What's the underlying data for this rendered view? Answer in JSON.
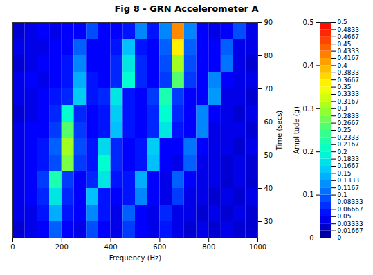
{
  "chart_data": {
    "type": "heatmap",
    "title": "Fig 8 - GRN Accelerometer A",
    "xlabel": "Frequency (Hz)",
    "ylabel": "Time (secs)",
    "zlabel": "Amplitude (g)",
    "xlim": [
      0,
      1000
    ],
    "xticks": [
      0,
      200,
      400,
      600,
      800,
      1000
    ],
    "ylim": [
      25,
      90
    ],
    "yticks": [
      30,
      40,
      50,
      60,
      70,
      80,
      90
    ],
    "zlim": [
      0,
      0.5
    ],
    "zticks": [
      0,
      0.1,
      0.2,
      0.3,
      0.4,
      0.5
    ],
    "x_bins": [
      0,
      50,
      100,
      150,
      200,
      250,
      300,
      350,
      400,
      450,
      500,
      550,
      600,
      650,
      700,
      750,
      800,
      850,
      900,
      950,
      1000
    ],
    "y_bins": [
      25,
      30,
      35,
      40,
      45,
      50,
      55,
      60,
      65,
      70,
      75,
      80,
      85,
      90
    ],
    "cells": [
      [
        0.03,
        0.04,
        0.05,
        0.1,
        0.05,
        0.04,
        0.09,
        0.05,
        0.04,
        0.08,
        0.05,
        0.04,
        0.06,
        0.04,
        0.03,
        0.04,
        0.03,
        0.04,
        0.03,
        0.03
      ],
      [
        0.04,
        0.04,
        0.06,
        0.14,
        0.06,
        0.05,
        0.12,
        0.06,
        0.04,
        0.1,
        0.05,
        0.04,
        0.07,
        0.04,
        0.04,
        0.03,
        0.04,
        0.03,
        0.04,
        0.03
      ],
      [
        0.04,
        0.05,
        0.07,
        0.18,
        0.07,
        0.05,
        0.15,
        0.06,
        0.05,
        0.06,
        0.12,
        0.05,
        0.04,
        0.08,
        0.04,
        0.04,
        0.03,
        0.04,
        0.03,
        0.04
      ],
      [
        0.04,
        0.05,
        0.08,
        0.22,
        0.08,
        0.05,
        0.07,
        0.18,
        0.06,
        0.06,
        0.14,
        0.05,
        0.04,
        0.1,
        0.05,
        0.04,
        0.04,
        0.03,
        0.04,
        0.03
      ],
      [
        0.04,
        0.05,
        0.06,
        0.09,
        0.28,
        0.08,
        0.06,
        0.2,
        0.07,
        0.05,
        0.06,
        0.15,
        0.05,
        0.04,
        0.1,
        0.04,
        0.04,
        0.03,
        0.04,
        0.03
      ],
      [
        0.04,
        0.05,
        0.06,
        0.1,
        0.3,
        0.09,
        0.06,
        0.17,
        0.07,
        0.05,
        0.06,
        0.16,
        0.05,
        0.05,
        0.11,
        0.05,
        0.04,
        0.04,
        0.03,
        0.04
      ],
      [
        0.04,
        0.05,
        0.05,
        0.08,
        0.26,
        0.08,
        0.05,
        0.06,
        0.15,
        0.06,
        0.05,
        0.07,
        0.18,
        0.06,
        0.05,
        0.12,
        0.04,
        0.04,
        0.04,
        0.03
      ],
      [
        0.03,
        0.04,
        0.05,
        0.07,
        0.2,
        0.07,
        0.05,
        0.06,
        0.16,
        0.06,
        0.05,
        0.07,
        0.2,
        0.07,
        0.05,
        0.12,
        0.05,
        0.04,
        0.03,
        0.04
      ],
      [
        0.04,
        0.04,
        0.05,
        0.06,
        0.07,
        0.16,
        0.06,
        0.07,
        0.18,
        0.06,
        0.05,
        0.08,
        0.22,
        0.08,
        0.05,
        0.05,
        0.13,
        0.04,
        0.04,
        0.03
      ],
      [
        0.04,
        0.05,
        0.04,
        0.05,
        0.06,
        0.14,
        0.06,
        0.05,
        0.07,
        0.2,
        0.07,
        0.05,
        0.08,
        0.26,
        0.08,
        0.05,
        0.12,
        0.05,
        0.04,
        0.04
      ],
      [
        0.03,
        0.04,
        0.05,
        0.05,
        0.06,
        0.12,
        0.05,
        0.05,
        0.07,
        0.18,
        0.07,
        0.05,
        0.09,
        0.3,
        0.09,
        0.05,
        0.05,
        0.11,
        0.04,
        0.03
      ],
      [
        0.04,
        0.04,
        0.04,
        0.05,
        0.05,
        0.1,
        0.05,
        0.05,
        0.06,
        0.15,
        0.06,
        0.05,
        0.1,
        0.36,
        0.1,
        0.05,
        0.05,
        0.1,
        0.04,
        0.04
      ],
      [
        0.03,
        0.04,
        0.05,
        0.04,
        0.05,
        0.05,
        0.09,
        0.05,
        0.05,
        0.06,
        0.12,
        0.06,
        0.12,
        0.42,
        0.12,
        0.05,
        0.04,
        0.05,
        0.09,
        0.04
      ]
    ],
    "colorbar_ticks": [
      0,
      0.01667,
      0.03333,
      0.05,
      0.06667,
      0.08333,
      0.1,
      0.1167,
      0.1333,
      0.15,
      0.1667,
      0.1833,
      0.2,
      0.2167,
      0.2333,
      0.25,
      0.2667,
      0.2833,
      0.3,
      0.3167,
      0.3333,
      0.35,
      0.3667,
      0.3833,
      0.4,
      0.4167,
      0.4333,
      0.45,
      0.4667,
      0.4833,
      0.5
    ]
  }
}
